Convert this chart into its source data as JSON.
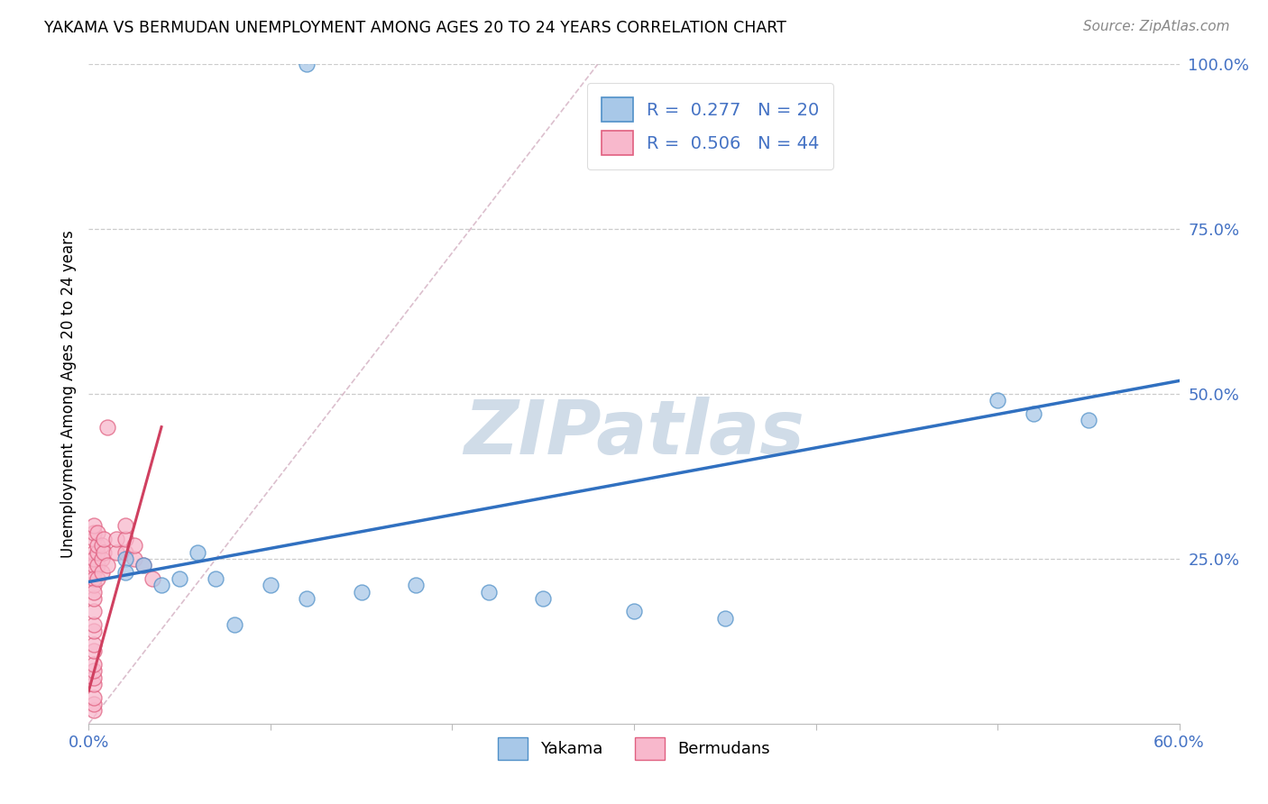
{
  "title": "YAKAMA VS BERMUDAN UNEMPLOYMENT AMONG AGES 20 TO 24 YEARS CORRELATION CHART",
  "source": "Source: ZipAtlas.com",
  "xlabel_color": "#4472c4",
  "ylabel": "Unemployment Among Ages 20 to 24 years",
  "xlim": [
    0.0,
    0.6
  ],
  "ylim": [
    0.0,
    1.0
  ],
  "xticks": [
    0.0,
    0.1,
    0.2,
    0.3,
    0.4,
    0.5,
    0.6
  ],
  "xtick_labels": [
    "0.0%",
    "",
    "",
    "",
    "",
    "",
    "60.0%"
  ],
  "yakama_R": 0.277,
  "yakama_N": 20,
  "bermudan_R": 0.506,
  "bermudan_N": 44,
  "yakama_color": "#a8c8e8",
  "bermudan_color": "#f8b8cc",
  "yakama_edge_color": "#5090c8",
  "bermudan_edge_color": "#e06080",
  "yakama_line_color": "#3070c0",
  "bermudan_line_color": "#d04060",
  "ref_line_color": "#d8b8c8",
  "watermark_color": "#d0dce8",
  "yakama_x": [
    0.12,
    0.02,
    0.03,
    0.04,
    0.05,
    0.06,
    0.07,
    0.1,
    0.12,
    0.15,
    0.18,
    0.22,
    0.25,
    0.3,
    0.35,
    0.5,
    0.52,
    0.55,
    0.02,
    0.08
  ],
  "yakama_y": [
    1.0,
    0.25,
    0.24,
    0.21,
    0.22,
    0.26,
    0.22,
    0.21,
    0.19,
    0.2,
    0.21,
    0.2,
    0.19,
    0.17,
    0.16,
    0.49,
    0.47,
    0.46,
    0.23,
    0.15
  ],
  "bermudan_x": [
    0.003,
    0.003,
    0.003,
    0.003,
    0.003,
    0.003,
    0.003,
    0.003,
    0.003,
    0.003,
    0.003,
    0.003,
    0.003,
    0.003,
    0.003,
    0.003,
    0.003,
    0.003,
    0.003,
    0.003,
    0.003,
    0.003,
    0.003,
    0.005,
    0.005,
    0.005,
    0.005,
    0.005,
    0.007,
    0.007,
    0.007,
    0.008,
    0.008,
    0.01,
    0.01,
    0.015,
    0.015,
    0.02,
    0.02,
    0.02,
    0.025,
    0.025,
    0.03,
    0.035
  ],
  "bermudan_y": [
    0.02,
    0.03,
    0.04,
    0.06,
    0.07,
    0.08,
    0.09,
    0.11,
    0.12,
    0.14,
    0.15,
    0.17,
    0.19,
    0.21,
    0.23,
    0.24,
    0.26,
    0.28,
    0.29,
    0.3,
    0.22,
    0.25,
    0.2,
    0.24,
    0.26,
    0.27,
    0.29,
    0.22,
    0.25,
    0.27,
    0.23,
    0.26,
    0.28,
    0.24,
    0.45,
    0.26,
    0.28,
    0.26,
    0.28,
    0.3,
    0.25,
    0.27,
    0.24,
    0.22
  ],
  "yakama_trendline": [
    0.0,
    0.6,
    0.215,
    0.52
  ],
  "bermudan_trendline": [
    0.0,
    0.04,
    0.05,
    0.45
  ]
}
